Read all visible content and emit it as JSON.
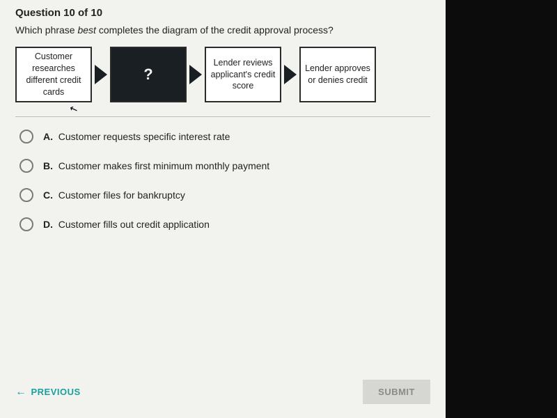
{
  "header": {
    "question_number": "Question 10 of 10",
    "question_html_prefix": "Which phrase ",
    "question_html_em": "best",
    "question_html_suffix": " completes the diagram of the credit approval process?"
  },
  "flow": {
    "boxes": [
      {
        "text": "Customer researches different credit cards",
        "mystery": false
      },
      {
        "text": "?",
        "mystery": true
      },
      {
        "text": "Lender reviews applicant's credit score",
        "mystery": false
      },
      {
        "text": "Lender approves or denies credit",
        "mystery": false
      }
    ],
    "box_border_color": "#2b2b2b",
    "mystery_bg": "#1a1f24",
    "arrow_color": "#1a1f24"
  },
  "options": [
    {
      "letter": "A.",
      "text": "Customer requests specific interest rate"
    },
    {
      "letter": "B.",
      "text": "Customer makes first minimum monthly payment"
    },
    {
      "letter": "C.",
      "text": "Customer files for bankruptcy"
    },
    {
      "letter": "D.",
      "text": "Customer fills out credit application"
    }
  ],
  "footer": {
    "previous_label": "PREVIOUS",
    "submit_label": "SUBMIT"
  },
  "colors": {
    "page_bg": "#f2f2ef",
    "accent": "#1aa0a0",
    "submit_bg": "#d6d6d2",
    "submit_fg": "#8a8a86",
    "radio_border": "#7a7a78",
    "divider": "#bcbcb8"
  },
  "typography": {
    "base_font": "Arial, Helvetica, sans-serif",
    "question_number_size": 15,
    "question_text_size": 14,
    "flow_box_size": 12.5,
    "option_size": 14,
    "footer_size": 13
  }
}
